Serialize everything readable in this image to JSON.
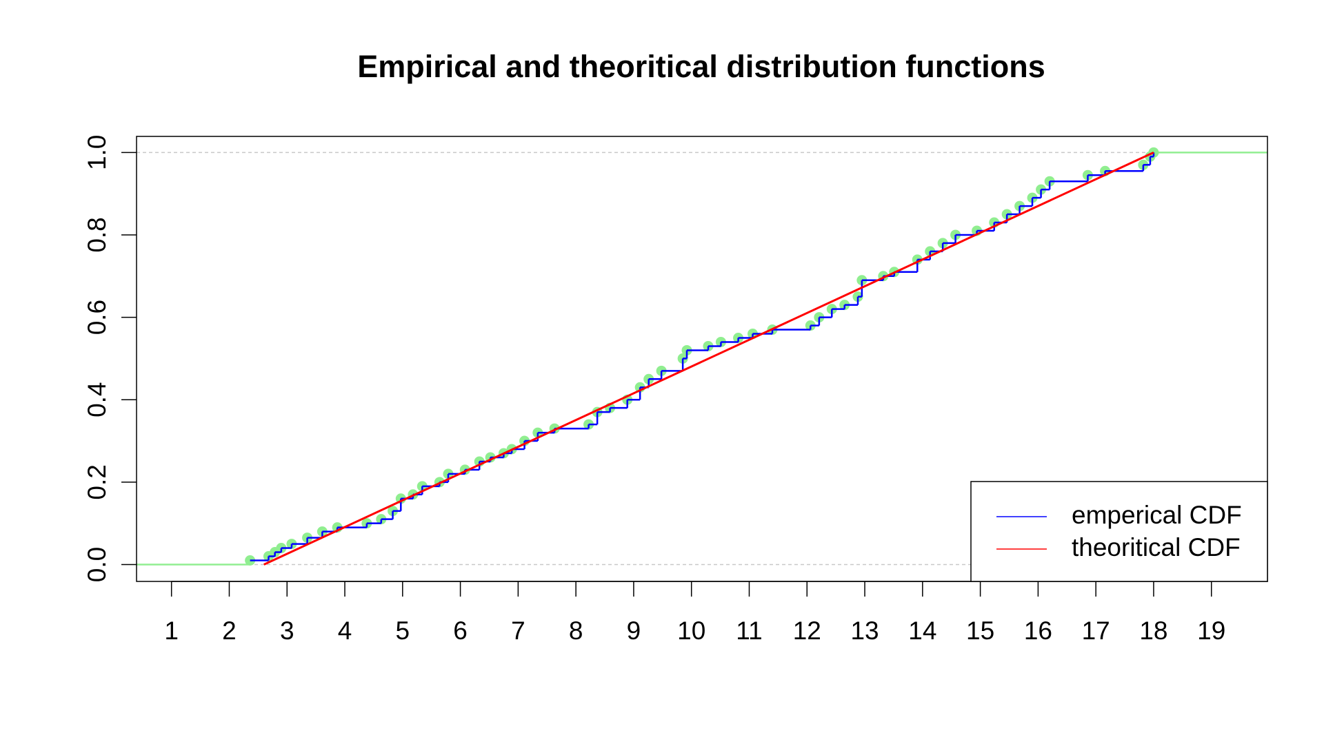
{
  "chart_data": {
    "type": "ecdf",
    "title": "Empirical and theoritical distribution functions",
    "xlim": [
      0.395,
      19.97
    ],
    "ylim": [
      -0.041,
      1.039
    ],
    "xticks": [
      1,
      2,
      3,
      4,
      5,
      6,
      7,
      8,
      9,
      10,
      11,
      12,
      13,
      14,
      15,
      16,
      17,
      18,
      19
    ],
    "yticks": [
      {
        "value": 0,
        "label": "0.0"
      },
      {
        "value": 0.2,
        "label": "0.2"
      },
      {
        "value": 0.4,
        "label": "0.4"
      },
      {
        "value": 0.6,
        "label": "0.6"
      },
      {
        "value": 0.8,
        "label": "0.8"
      },
      {
        "value": 1,
        "label": "1.0"
      }
    ],
    "hlines": [
      0,
      1
    ],
    "legend": "bottomright",
    "series": [
      {
        "name": "emperical CDF",
        "color": "#0000ff",
        "point_color": "#90ee90",
        "line_color": "#90ee90",
        "style": "step",
        "x": [
          2.36,
          2.68,
          2.79,
          2.9,
          3.08,
          3.35,
          3.61,
          3.87,
          4.38,
          4.63,
          4.83,
          4.97,
          5.18,
          5.34,
          5.64,
          5.79,
          6.08,
          6.33,
          6.52,
          6.75,
          6.89,
          7.11,
          7.34,
          7.63,
          8.22,
          8.37,
          8.59,
          8.89,
          9.11,
          9.26,
          9.48,
          9.85,
          9.92,
          10.29,
          10.51,
          10.81,
          11.06,
          11.4,
          12.06,
          12.21,
          12.43,
          12.65,
          12.88,
          12.95,
          13.32,
          13.51,
          13.91,
          14.13,
          14.35,
          14.57,
          14.94,
          15.24,
          15.46,
          15.68,
          15.9,
          16.05,
          16.2,
          16.86,
          17.16,
          17.82,
          17.94,
          18.0
        ],
        "values": [
          0.01,
          0.02,
          0.03,
          0.04,
          0.05,
          0.065,
          0.08,
          0.09,
          0.1,
          0.11,
          0.13,
          0.16,
          0.17,
          0.19,
          0.2,
          0.22,
          0.23,
          0.25,
          0.26,
          0.27,
          0.28,
          0.3,
          0.32,
          0.33,
          0.34,
          0.37,
          0.38,
          0.4,
          0.43,
          0.45,
          0.47,
          0.5,
          0.52,
          0.53,
          0.54,
          0.55,
          0.56,
          0.57,
          0.58,
          0.6,
          0.62,
          0.63,
          0.65,
          0.69,
          0.7,
          0.71,
          0.74,
          0.76,
          0.78,
          0.8,
          0.81,
          0.83,
          0.85,
          0.87,
          0.89,
          0.91,
          0.93,
          0.945,
          0.955,
          0.97,
          0.99,
          1.0
        ]
      },
      {
        "name": "theoritical CDF",
        "color": "#ff0000",
        "style": "line",
        "x": [
          2.6,
          18
        ],
        "values": [
          0,
          1
        ]
      }
    ]
  }
}
